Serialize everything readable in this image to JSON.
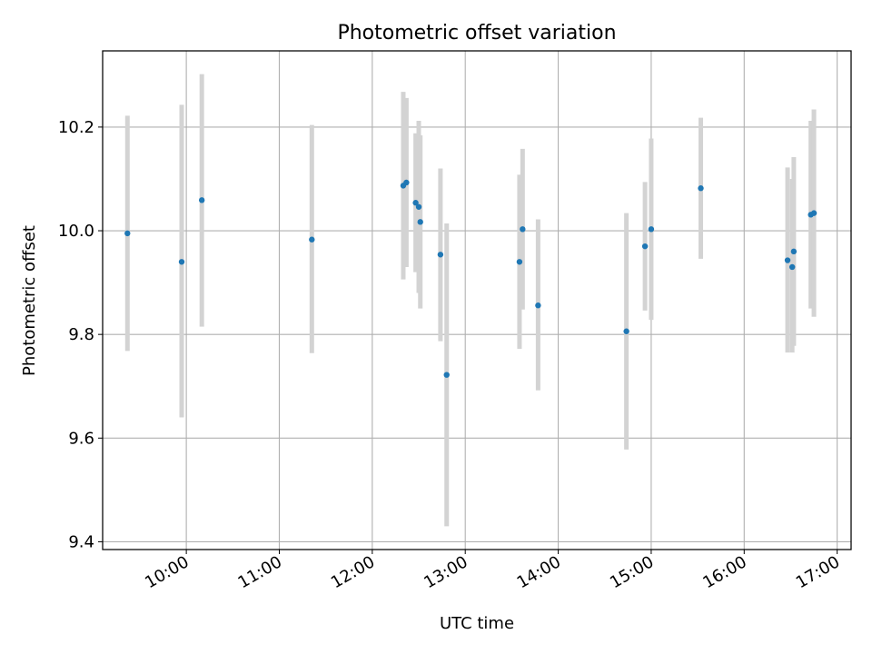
{
  "chart_data": {
    "type": "scatter",
    "title": "Photometric offset variation",
    "xlabel": "UTC time",
    "ylabel": "Photometric offset",
    "x_tick_labels": [
      "10:00",
      "11:00",
      "12:00",
      "13:00",
      "14:00",
      "15:00",
      "16:00",
      "17:00"
    ],
    "x_tick_times": [
      "10:00",
      "11:00",
      "12:00",
      "13:00",
      "14:00",
      "15:00",
      "16:00",
      "17:00"
    ],
    "y_ticks": [
      9.4,
      9.6,
      9.8,
      10.0,
      10.2
    ],
    "y_tick_labels": [
      "9.4",
      "9.6",
      "9.8",
      "10.0",
      "10.2"
    ],
    "xlim": [
      "09:06",
      "17:09"
    ],
    "ylim": [
      9.385,
      10.347
    ],
    "grid": true,
    "marker_color": "#1f77b4",
    "errorbar_color": "#d3d3d3",
    "points": [
      {
        "time": "09:22",
        "value": 9.995,
        "low": 9.768,
        "high": 10.222
      },
      {
        "time": "09:57",
        "value": 9.94,
        "low": 9.64,
        "high": 10.243
      },
      {
        "time": "10:10",
        "value": 10.059,
        "low": 9.815,
        "high": 10.302
      },
      {
        "time": "11:21",
        "value": 9.983,
        "low": 9.764,
        "high": 10.204
      },
      {
        "time": "12:20",
        "value": 10.087,
        "low": 9.906,
        "high": 10.268
      },
      {
        "time": "12:22",
        "value": 10.093,
        "low": 9.93,
        "high": 10.256
      },
      {
        "time": "12:28",
        "value": 10.054,
        "low": 9.92,
        "high": 10.188
      },
      {
        "time": "12:30",
        "value": 10.046,
        "low": 9.88,
        "high": 10.212
      },
      {
        "time": "12:31",
        "value": 10.017,
        "low": 9.85,
        "high": 10.184
      },
      {
        "time": "12:44",
        "value": 9.954,
        "low": 9.787,
        "high": 10.12
      },
      {
        "time": "12:48",
        "value": 9.722,
        "low": 9.43,
        "high": 10.014
      },
      {
        "time": "13:35",
        "value": 9.94,
        "low": 9.772,
        "high": 10.108
      },
      {
        "time": "13:37",
        "value": 10.003,
        "low": 9.848,
        "high": 10.158
      },
      {
        "time": "13:47",
        "value": 9.856,
        "low": 9.692,
        "high": 10.022
      },
      {
        "time": "14:44",
        "value": 9.806,
        "low": 9.578,
        "high": 10.034
      },
      {
        "time": "14:56",
        "value": 9.97,
        "low": 9.846,
        "high": 10.094
      },
      {
        "time": "15:00",
        "value": 10.003,
        "low": 9.828,
        "high": 10.178
      },
      {
        "time": "15:32",
        "value": 10.082,
        "low": 9.946,
        "high": 10.218
      },
      {
        "time": "16:28",
        "value": 9.943,
        "low": 9.765,
        "high": 10.122
      },
      {
        "time": "16:31",
        "value": 9.93,
        "low": 9.765,
        "high": 10.1
      },
      {
        "time": "16:32",
        "value": 9.96,
        "low": 9.778,
        "high": 10.142
      },
      {
        "time": "16:43",
        "value": 10.031,
        "low": 9.85,
        "high": 10.212
      },
      {
        "time": "16:45",
        "value": 10.034,
        "low": 9.834,
        "high": 10.234
      }
    ]
  }
}
